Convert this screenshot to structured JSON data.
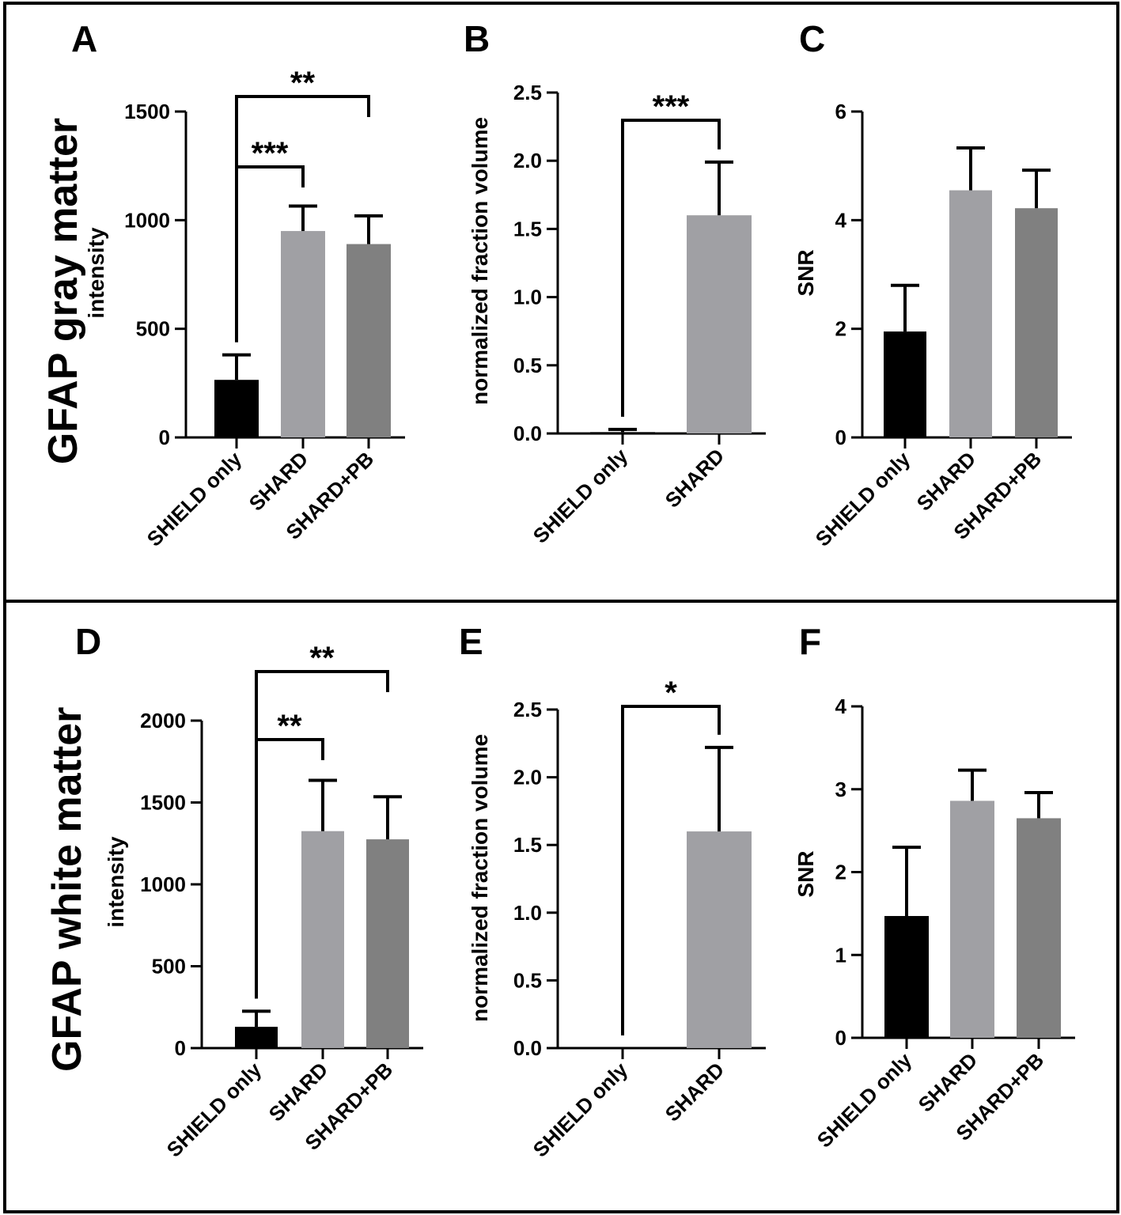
{
  "rows": [
    {
      "title": "GFAP gray matter"
    },
    {
      "title": "GFAP white matter"
    }
  ],
  "panel_labels": [
    "A",
    "B",
    "C",
    "D",
    "E",
    "F"
  ],
  "colors": {
    "black": "#000000",
    "light_gray": "#a0a0a4",
    "mid_gray": "#808080",
    "frame": "#000000"
  },
  "chart_data": [
    {
      "id": "A",
      "type": "bar",
      "title": "",
      "xlabel": "",
      "ylabel": "intensity",
      "categories": [
        "SHIELD only",
        "SHARD",
        "SHARD+PB"
      ],
      "values": [
        265,
        950,
        890
      ],
      "errors": [
        115,
        115,
        130
      ],
      "ylim": [
        0,
        1500
      ],
      "yticks": [
        "0",
        "500",
        "1000",
        "1500"
      ],
      "comparisons": [
        {
          "from": 0,
          "to": 1,
          "label": "***"
        },
        {
          "from": 0,
          "to": 2,
          "label": "**"
        }
      ]
    },
    {
      "id": "B",
      "type": "bar",
      "title": "",
      "xlabel": "",
      "ylabel": "normalized fraction volume",
      "categories": [
        "SHIELD only",
        "SHARD"
      ],
      "values": [
        0.01,
        1.6
      ],
      "errors": [
        0.02,
        0.39
      ],
      "ylim": [
        0,
        2.5
      ],
      "yticks": [
        "0.0",
        "0.5",
        "1.0",
        "1.5",
        "2.0",
        "2.5"
      ],
      "comparisons": [
        {
          "from": 0,
          "to": 1,
          "label": "***"
        }
      ]
    },
    {
      "id": "C",
      "type": "bar",
      "title": "",
      "xlabel": "",
      "ylabel": "SNR",
      "categories": [
        "SHIELD only",
        "SHARD",
        "SHARD+PB"
      ],
      "values": [
        1.95,
        4.55,
        4.22
      ],
      "errors": [
        0.85,
        0.78,
        0.7
      ],
      "ylim": [
        0,
        6
      ],
      "yticks": [
        "0",
        "2",
        "4",
        "6"
      ],
      "comparisons": []
    },
    {
      "id": "D",
      "type": "bar",
      "title": "",
      "xlabel": "",
      "ylabel": "intensity",
      "categories": [
        "SHIELD only",
        "SHARD",
        "SHARD+PB"
      ],
      "values": [
        130,
        1325,
        1275
      ],
      "errors": [
        95,
        310,
        260
      ],
      "ylim": [
        0,
        2000
      ],
      "yticks": [
        "0",
        "500",
        "1000",
        "1500",
        "2000"
      ],
      "comparisons": [
        {
          "from": 0,
          "to": 1,
          "label": "**"
        },
        {
          "from": 0,
          "to": 2,
          "label": "**"
        }
      ]
    },
    {
      "id": "E",
      "type": "bar",
      "title": "",
      "xlabel": "",
      "ylabel": "normalized fraction volume",
      "categories": [
        "SHIELD only",
        "SHARD"
      ],
      "values": [
        0.0,
        1.6
      ],
      "errors": [
        0.0,
        0.62
      ],
      "ylim": [
        0,
        2.5
      ],
      "yticks": [
        "0.0",
        "0.5",
        "1.0",
        "1.5",
        "2.0",
        "2.5"
      ],
      "comparisons": [
        {
          "from": 0,
          "to": 1,
          "label": "*"
        }
      ]
    },
    {
      "id": "F",
      "type": "bar",
      "title": "",
      "xlabel": "",
      "ylabel": "SNR",
      "categories": [
        "SHIELD only",
        "SHARD",
        "SHARD+PB"
      ],
      "values": [
        1.47,
        2.86,
        2.65
      ],
      "errors": [
        0.83,
        0.37,
        0.31
      ],
      "ylim": [
        0,
        4
      ],
      "yticks": [
        "0",
        "1",
        "2",
        "3",
        "4"
      ],
      "comparisons": []
    }
  ]
}
